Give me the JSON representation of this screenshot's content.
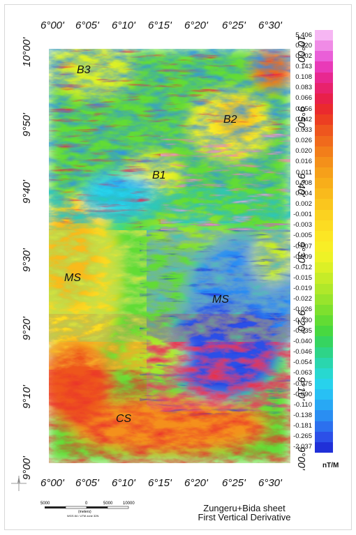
{
  "map": {
    "top_ticks": [
      "6°00'",
      "6°05'",
      "6°10'",
      "6°15'",
      "6°20'",
      "6°25'",
      "6°30'"
    ],
    "bottom_ticks": [
      "6°00'",
      "6°05'",
      "6°10'",
      "6°15'",
      "6°20'",
      "6°25'",
      "6°30'"
    ],
    "left_ticks": [
      "10°00'",
      "9°50'",
      "9°40'",
      "9°30'",
      "9°20'",
      "9°10'",
      "9°00'"
    ],
    "right_ticks": [
      "10°00'",
      "9°50'",
      "9°40'",
      "9°30'",
      "9°20'",
      "9°10'",
      "9°00'"
    ],
    "regions": [
      {
        "label": "B3"
      },
      {
        "label": "B2"
      },
      {
        "label": "B1"
      },
      {
        "label": "MS"
      },
      {
        "label": "MS"
      },
      {
        "label": "CS"
      }
    ]
  },
  "legend": {
    "unit": "nT/M",
    "entries": [
      {
        "label": "5.406",
        "color": "#f6b6f3"
      },
      {
        "label": "0.320",
        "color": "#f08be6"
      },
      {
        "label": "0.202",
        "color": "#ea5fd8"
      },
      {
        "label": "0.143",
        "color": "#e93ab8"
      },
      {
        "label": "0.108",
        "color": "#e82890"
      },
      {
        "label": "0.083",
        "color": "#e8226c"
      },
      {
        "label": "0.066",
        "color": "#e8204a"
      },
      {
        "label": "0.056",
        "color": "#ea2a2e"
      },
      {
        "label": "0.042",
        "color": "#ec3e22"
      },
      {
        "label": "0.033",
        "color": "#ee561e"
      },
      {
        "label": "0.026",
        "color": "#f06a1c"
      },
      {
        "label": "0.020",
        "color": "#f27e1a"
      },
      {
        "label": "0.016",
        "color": "#f4901a"
      },
      {
        "label": "0.011",
        "color": "#f6a01a"
      },
      {
        "label": "0.008",
        "color": "#f8ae1a"
      },
      {
        "label": "0.004",
        "color": "#f9ba1c"
      },
      {
        "label": "0.002",
        "color": "#fac61e"
      },
      {
        "label": "-0.001",
        "color": "#fbd220"
      },
      {
        "label": "-0.003",
        "color": "#fcdc22"
      },
      {
        "label": "-0.005",
        "color": "#fce624"
      },
      {
        "label": "-0.007",
        "color": "#f8ee26"
      },
      {
        "label": "-0.009",
        "color": "#eef226"
      },
      {
        "label": "-0.012",
        "color": "#dcf026"
      },
      {
        "label": "-0.015",
        "color": "#c6ec28"
      },
      {
        "label": "-0.019",
        "color": "#b0e82a"
      },
      {
        "label": "-0.022",
        "color": "#98e42c"
      },
      {
        "label": "-0.026",
        "color": "#7ee02e"
      },
      {
        "label": "-0.030",
        "color": "#62dc34"
      },
      {
        "label": "-0.035",
        "color": "#48d840"
      },
      {
        "label": "-0.040",
        "color": "#36d460"
      },
      {
        "label": "-0.046",
        "color": "#2ed488"
      },
      {
        "label": "-0.054",
        "color": "#2ad6ae"
      },
      {
        "label": "-0.063",
        "color": "#28d8d0"
      },
      {
        "label": "-0.075",
        "color": "#28d2ec"
      },
      {
        "label": "-0.090",
        "color": "#28c0f4"
      },
      {
        "label": "-0.110",
        "color": "#28a8f4"
      },
      {
        "label": "-0.138",
        "color": "#2a8ef2"
      },
      {
        "label": "-0.181",
        "color": "#2c70ee"
      },
      {
        "label": "-0.265",
        "color": "#2c50e8"
      },
      {
        "label": "-2.037",
        "color": "#2030d8"
      }
    ]
  },
  "scale_bar": {
    "labels": [
      "5000",
      "0",
      "5000",
      "10000"
    ],
    "unit": "(meters)",
    "projection": "WGS 84 / UTM zone 32N"
  },
  "title": {
    "line1": "Zungeru+Bida sheet",
    "line2": "First Vertical Derivative"
  },
  "north_icon": "north-arrow-icon"
}
